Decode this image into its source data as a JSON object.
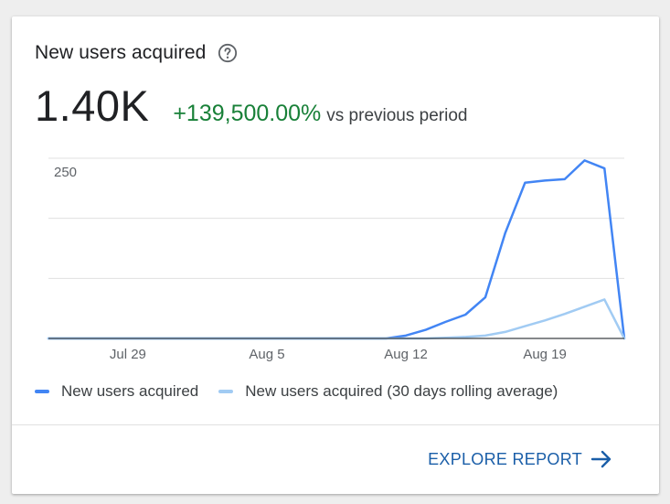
{
  "card": {
    "title": "New users acquired",
    "help_icon": "help-circle-icon",
    "metric_value": "1.40K",
    "metric_change": "+139,500.00%",
    "metric_suffix": "vs previous period",
    "explore_label": "EXPLORE REPORT",
    "explore_icon": "arrow-right-icon"
  },
  "colors": {
    "primary_series": "#4285f4",
    "secondary_series": "#a1cbf3",
    "positive_change": "#188038",
    "link": "#1a5ea8"
  },
  "chart_data": {
    "type": "line",
    "y_tick_labels": [
      "250"
    ],
    "y_ticks": [
      0,
      83.3,
      166.7,
      250
    ],
    "ylim": [
      0,
      250
    ],
    "x_tick_labels": [
      "Jul 29",
      "Aug 5",
      "Aug 12",
      "Aug 19"
    ],
    "x_tick_days": [
      4,
      11,
      18,
      25
    ],
    "grid": true,
    "legend_position": "bottom",
    "series": [
      {
        "name": "New users acquired",
        "color": "#4285f4",
        "x": [
          0,
          1,
          2,
          3,
          4,
          5,
          6,
          7,
          8,
          9,
          10,
          11,
          12,
          13,
          14,
          15,
          16,
          17,
          18,
          19,
          20,
          21,
          22,
          23,
          24,
          25,
          26,
          27,
          28,
          29
        ],
        "values": [
          0,
          0,
          0,
          0,
          0,
          0,
          0,
          0,
          0,
          0,
          0,
          0,
          0,
          0,
          0,
          0,
          0,
          0,
          4,
          12,
          23,
          33,
          57,
          146,
          216,
          219,
          221,
          247,
          236,
          0
        ]
      },
      {
        "name": "New users acquired (30 days rolling average)",
        "color": "#a1cbf3",
        "x": [
          0,
          1,
          2,
          3,
          4,
          5,
          6,
          7,
          8,
          9,
          10,
          11,
          12,
          13,
          14,
          15,
          16,
          17,
          18,
          19,
          20,
          21,
          22,
          23,
          24,
          25,
          26,
          27,
          28,
          29
        ],
        "values": [
          0,
          0,
          0,
          0,
          0,
          0,
          0,
          0,
          0,
          0,
          0,
          0,
          0,
          0,
          0,
          0,
          0,
          0,
          0,
          0,
          1,
          2,
          4,
          9,
          17,
          25,
          34,
          44,
          54,
          0
        ]
      }
    ]
  }
}
